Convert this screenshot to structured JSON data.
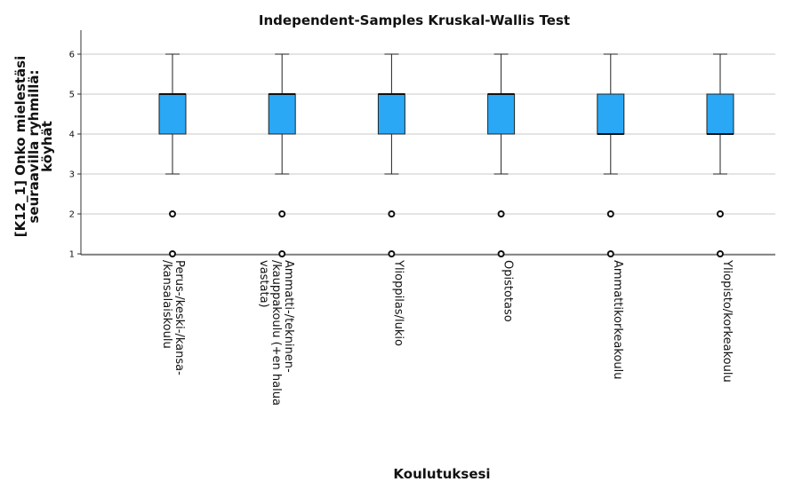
{
  "chart_data": {
    "type": "boxplot",
    "title": "Independent-Samples Kruskal-Wallis Test",
    "xlabel": "Koulutuksesi",
    "ylabel": [
      "[K12_1] Onko mielestäsi",
      "seuraavilla ryhmillä:",
      "köyhät"
    ],
    "ylim": [
      1,
      6.5
    ],
    "yticks": [
      1,
      2,
      3,
      4,
      5,
      6
    ],
    "grid": true,
    "box_color": "#2aa8f5",
    "categories": [
      [
        "Perus-/keski-/kansa-",
        "/kansalaiskoulu"
      ],
      [
        "Ammatti-/tekninen-",
        "/kauppakoulu (+en halua",
        "vastata)"
      ],
      [
        "Ylioppilas/lukio"
      ],
      [
        "Opistotaso"
      ],
      [
        "Ammattikorkeakoulu"
      ],
      [
        "Yliopisto/korkeakoulu"
      ]
    ],
    "boxes": [
      {
        "whisker_low": 3,
        "q1": 4,
        "median": 5,
        "q3": 5,
        "whisker_high": 6,
        "outliers": [
          2,
          1
        ]
      },
      {
        "whisker_low": 3,
        "q1": 4,
        "median": 5,
        "q3": 5,
        "whisker_high": 6,
        "outliers": [
          2,
          1
        ]
      },
      {
        "whisker_low": 3,
        "q1": 4,
        "median": 5,
        "q3": 5,
        "whisker_high": 6,
        "outliers": [
          2,
          1
        ]
      },
      {
        "whisker_low": 3,
        "q1": 4,
        "median": 5,
        "q3": 5,
        "whisker_high": 6,
        "outliers": [
          2,
          1
        ]
      },
      {
        "whisker_low": 3,
        "q1": 4,
        "median": 4,
        "q3": 5,
        "whisker_high": 6,
        "outliers": [
          2,
          1
        ]
      },
      {
        "whisker_low": 3,
        "q1": 4,
        "median": 4,
        "q3": 5,
        "whisker_high": 6,
        "outliers": [
          2,
          1
        ]
      }
    ]
  }
}
